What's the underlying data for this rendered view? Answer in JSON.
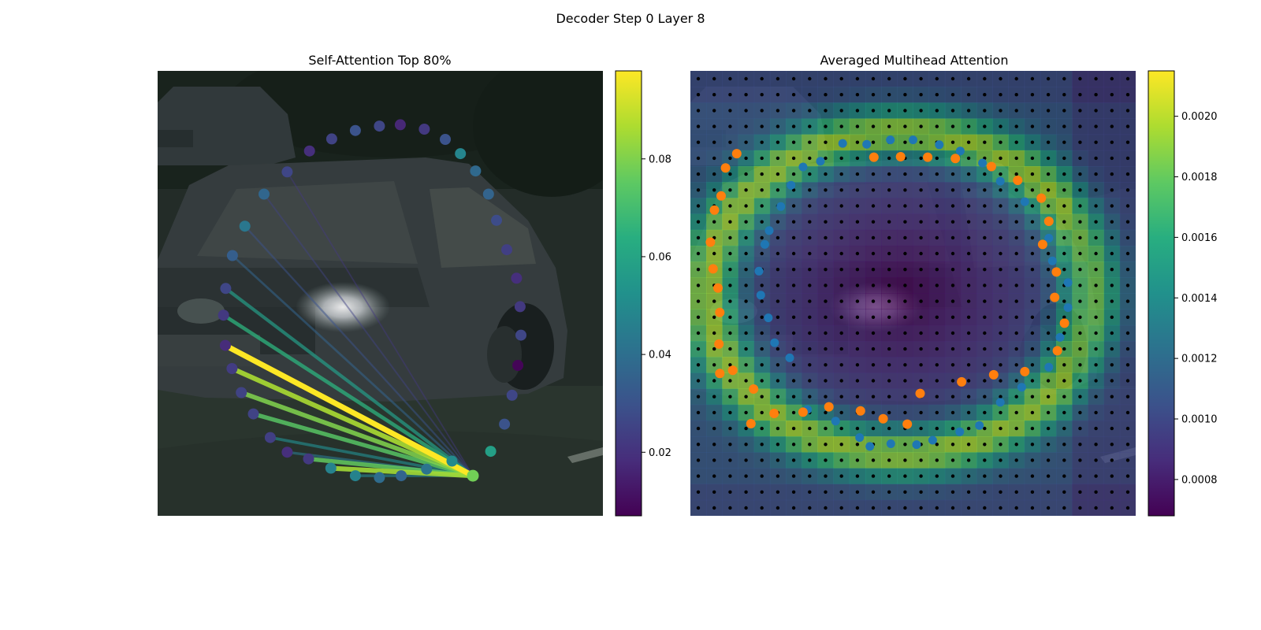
{
  "figure": {
    "suptitle": "Decoder Step 0 Layer 8"
  },
  "chart_data": [
    {
      "type": "scatter",
      "title": "Self-Attention Top 80%",
      "description_of_background": "photo of a dark car on a street",
      "point_colormap": "viridis",
      "clim": [
        0.007,
        0.098
      ],
      "colorbar": {
        "ticks": [
          0.02,
          0.04,
          0.06,
          0.08
        ],
        "tick_labels": [
          "0.02",
          "0.04",
          "0.06",
          "0.08"
        ]
      },
      "query_point_index": 0,
      "contour_points_xy": [
        [
          0.708,
          0.78
        ],
        [
          0.748,
          0.725
        ],
        [
          0.779,
          0.664
        ],
        [
          0.796,
          0.599
        ],
        [
          0.809,
          0.532
        ],
        [
          0.816,
          0.464
        ],
        [
          0.814,
          0.4
        ],
        [
          0.806,
          0.336
        ],
        [
          0.784,
          0.272
        ],
        [
          0.761,
          0.206
        ],
        [
          0.743,
          0.147
        ],
        [
          0.714,
          0.095
        ],
        [
          0.68,
          0.056
        ],
        [
          0.646,
          0.024
        ],
        [
          0.599,
          0.001
        ],
        [
          0.545,
          -0.009
        ],
        [
          0.498,
          -0.006
        ],
        [
          0.444,
          0.004
        ],
        [
          0.391,
          0.023
        ],
        [
          0.341,
          0.05
        ],
        [
          0.291,
          0.097
        ],
        [
          0.239,
          0.147
        ],
        [
          0.196,
          0.219
        ],
        [
          0.168,
          0.285
        ],
        [
          0.153,
          0.359
        ],
        [
          0.148,
          0.419
        ],
        [
          0.152,
          0.487
        ],
        [
          0.167,
          0.539
        ],
        [
          0.188,
          0.593
        ],
        [
          0.215,
          0.641
        ],
        [
          0.253,
          0.694
        ],
        [
          0.291,
          0.727
        ],
        [
          0.339,
          0.742
        ],
        [
          0.389,
          0.763
        ],
        [
          0.444,
          0.78
        ],
        [
          0.498,
          0.784
        ],
        [
          0.547,
          0.78
        ],
        [
          0.604,
          0.765
        ],
        [
          0.661,
          0.747
        ]
      ],
      "point_values": [
        0.078,
        0.058,
        0.03,
        0.026,
        0.008,
        0.026,
        0.022,
        0.019,
        0.024,
        0.028,
        0.036,
        0.038,
        0.048,
        0.03,
        0.022,
        0.017,
        0.026,
        0.03,
        0.025,
        0.019,
        0.026,
        0.037,
        0.043,
        0.034,
        0.026,
        0.022,
        0.018,
        0.023,
        0.025,
        0.025,
        0.024,
        0.019,
        0.022,
        0.047,
        0.047,
        0.039,
        0.036,
        0.042,
        0.05
      ],
      "attention_lines": [
        {
          "to": 26,
          "weight": 0.098
        },
        {
          "to": 27,
          "weight": 0.086
        },
        {
          "to": 33,
          "weight": 0.085
        },
        {
          "to": 28,
          "weight": 0.08
        },
        {
          "to": 32,
          "weight": 0.076
        },
        {
          "to": 29,
          "weight": 0.074
        },
        {
          "to": 25,
          "weight": 0.065
        },
        {
          "to": 24,
          "weight": 0.057
        },
        {
          "to": 30,
          "weight": 0.05
        },
        {
          "to": 34,
          "weight": 0.047
        },
        {
          "to": 31,
          "weight": 0.043
        },
        {
          "to": 23,
          "weight": 0.036
        },
        {
          "to": 22,
          "weight": 0.03
        },
        {
          "to": 21,
          "weight": 0.025
        },
        {
          "to": 20,
          "weight": 0.022
        }
      ]
    },
    {
      "type": "heatmap",
      "title": "Averaged Multihead Attention",
      "colormap": "viridis",
      "clim": [
        0.00068,
        0.00215
      ],
      "grid_size": [
        28,
        28
      ],
      "heatmap_rows_legend": "values are attention averaged over heads, background is same car photo",
      "colorbar": {
        "ticks": [
          0.0008,
          0.001,
          0.0012,
          0.0014,
          0.0016,
          0.0018,
          0.002
        ],
        "tick_labels": [
          "0.0008",
          "0.0010",
          "0.0012",
          "0.0014",
          "0.0016",
          "0.0018",
          "0.0020"
        ]
      },
      "reference_points_color": "#000000",
      "blue_series_color": "#1f77b4",
      "orange_series_color": "#ff7f0e",
      "blue_points_xy": [
        [
          0.342,
          0.163
        ],
        [
          0.396,
          0.165
        ],
        [
          0.449,
          0.155
        ],
        [
          0.5,
          0.155
        ],
        [
          0.559,
          0.166
        ],
        [
          0.606,
          0.18
        ],
        [
          0.656,
          0.207
        ],
        [
          0.696,
          0.248
        ],
        [
          0.751,
          0.294
        ],
        [
          0.805,
          0.376
        ],
        [
          0.813,
          0.427
        ],
        [
          0.848,
          0.476
        ],
        [
          0.848,
          0.532
        ],
        [
          0.83,
          0.599
        ],
        [
          0.805,
          0.666
        ],
        [
          0.744,
          0.711
        ],
        [
          0.696,
          0.745
        ],
        [
          0.649,
          0.797
        ],
        [
          0.605,
          0.811
        ],
        [
          0.544,
          0.83
        ],
        [
          0.508,
          0.84
        ],
        [
          0.45,
          0.838
        ],
        [
          0.403,
          0.844
        ],
        [
          0.38,
          0.824
        ],
        [
          0.326,
          0.787
        ],
        [
          0.263,
          0.761
        ],
        [
          0.223,
          0.645
        ],
        [
          0.189,
          0.611
        ],
        [
          0.175,
          0.555
        ],
        [
          0.158,
          0.504
        ],
        [
          0.154,
          0.45
        ],
        [
          0.167,
          0.39
        ],
        [
          0.177,
          0.359
        ],
        [
          0.203,
          0.305
        ],
        [
          0.226,
          0.257
        ],
        [
          0.253,
          0.216
        ],
        [
          0.292,
          0.203
        ]
      ],
      "orange_points_xy": [
        [
          0.412,
          0.194
        ],
        [
          0.472,
          0.193
        ],
        [
          0.533,
          0.194
        ],
        [
          0.595,
          0.197
        ],
        [
          0.676,
          0.215
        ],
        [
          0.735,
          0.246
        ],
        [
          0.788,
          0.286
        ],
        [
          0.805,
          0.338
        ],
        [
          0.791,
          0.39
        ],
        [
          0.822,
          0.452
        ],
        [
          0.818,
          0.509
        ],
        [
          0.84,
          0.567
        ],
        [
          0.824,
          0.629
        ],
        [
          0.751,
          0.676
        ],
        [
          0.681,
          0.683
        ],
        [
          0.609,
          0.699
        ],
        [
          0.516,
          0.725
        ],
        [
          0.487,
          0.794
        ],
        [
          0.433,
          0.782
        ],
        [
          0.382,
          0.764
        ],
        [
          0.311,
          0.755
        ],
        [
          0.253,
          0.767
        ],
        [
          0.188,
          0.77
        ],
        [
          0.136,
          0.793
        ],
        [
          0.142,
          0.715
        ],
        [
          0.095,
          0.673
        ],
        [
          0.066,
          0.68
        ],
        [
          0.064,
          0.614
        ],
        [
          0.066,
          0.543
        ],
        [
          0.062,
          0.488
        ],
        [
          0.051,
          0.445
        ],
        [
          0.045,
          0.385
        ],
        [
          0.054,
          0.313
        ],
        [
          0.069,
          0.281
        ],
        [
          0.079,
          0.218
        ],
        [
          0.104,
          0.186
        ]
      ]
    }
  ]
}
